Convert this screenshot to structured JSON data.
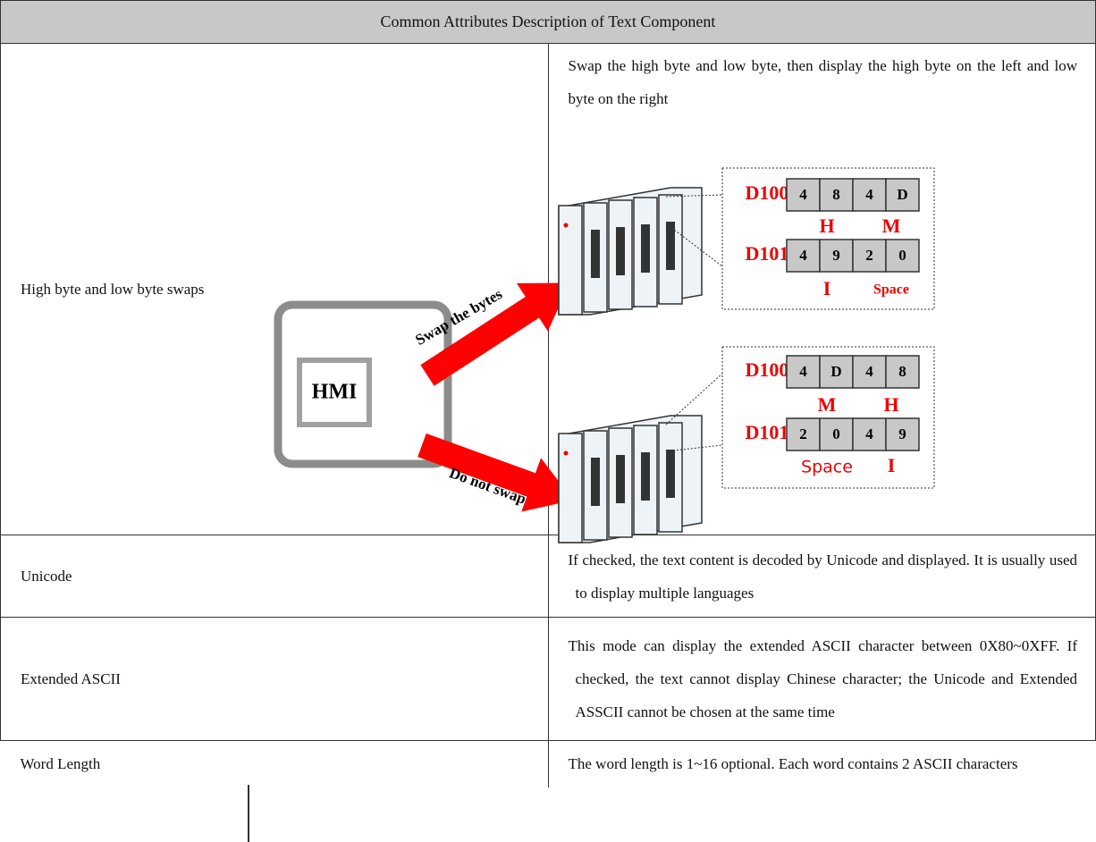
{
  "table": {
    "title": "Common Attributes Description of Text Component",
    "rows": [
      [
        "High byte and low byte swaps",
        "Swap the high byte and low byte, then display the high byte on the left and low byte on the right"
      ],
      [
        "Unicode",
        "If checked, the text content is decoded by Unicode and displayed. It is usually used to display multiple languages"
      ],
      [
        "Extended ASCII",
        "This mode can display the extended ASCII character between 0X80~0XFF. If checked, the text cannot display Chinese character; the Unicode and Extended ASSCII cannot be chosen at the same time"
      ],
      [
        "Word Length",
        "The word length is 1~16 optional. Each word contains 2 ASCII characters"
      ]
    ]
  },
  "diagram": {
    "hmi": "HMI",
    "swap_label": "Swap the bytes",
    "no_swap_label": "Do not swap",
    "groups": [
      {
        "registers": [
          {
            "name": "D100",
            "cells": [
              "4",
              "8",
              "4",
              "D"
            ],
            "labels": [
              "H",
              "M"
            ]
          },
          {
            "name": "D101",
            "cells": [
              "4",
              "9",
              "2",
              "0"
            ],
            "labels": [
              "I",
              "Space"
            ]
          }
        ]
      },
      {
        "registers": [
          {
            "name": "D100",
            "cells": [
              "4",
              "D",
              "4",
              "8"
            ],
            "labels": [
              "M",
              "H"
            ]
          },
          {
            "name": "D101",
            "cells": [
              "2",
              "0",
              "4",
              "9"
            ],
            "labels": [
              "Space",
              "I"
            ]
          }
        ]
      }
    ]
  }
}
